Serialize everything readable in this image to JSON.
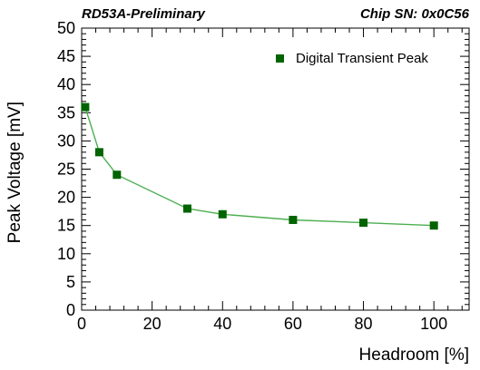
{
  "header": {
    "left_label": "RD53A-Preliminary",
    "right_label": "Chip SN: 0x0C56"
  },
  "chart_data": {
    "type": "line",
    "xlabel": "Headroom [%]",
    "ylabel": "Peak Voltage [mV]",
    "xlim": [
      0,
      110
    ],
    "ylim": [
      0,
      50
    ],
    "x_ticks": [
      0,
      20,
      40,
      60,
      80,
      100
    ],
    "y_ticks": [
      0,
      5,
      10,
      15,
      20,
      25,
      30,
      35,
      40,
      45,
      50
    ],
    "grid": false,
    "legend_position": "top-right",
    "series": [
      {
        "name": "Digital Transient Peak",
        "color": "#006400",
        "line_color": "#4caf50",
        "marker": "square",
        "x": [
          1,
          5,
          10,
          30,
          40,
          60,
          80,
          100
        ],
        "y": [
          36,
          28,
          24,
          18,
          17,
          16,
          15.5,
          15
        ]
      }
    ]
  }
}
